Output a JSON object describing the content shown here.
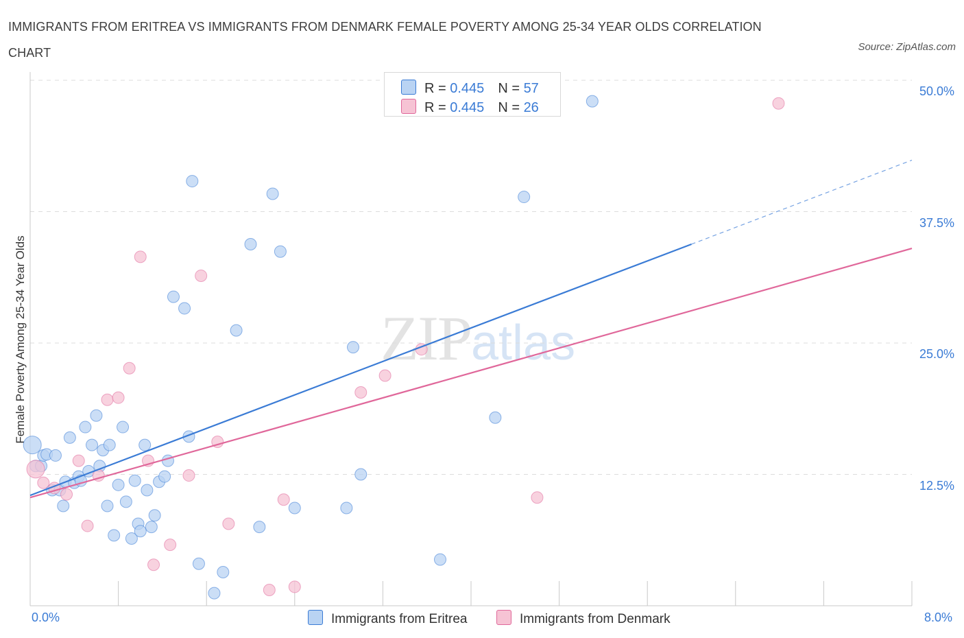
{
  "title": "IMMIGRANTS FROM ERITREA VS IMMIGRANTS FROM DENMARK FEMALE POVERTY AMONG 25-34 YEAR OLDS CORRELATION CHART",
  "source": "Source: ZipAtlas.com",
  "watermark": {
    "zip": "ZIP",
    "atlas": "atlas"
  },
  "colors": {
    "eritrea": "#3a7bd5",
    "eritrea_fill": "#b9d3f3",
    "denmark": "#e0679a",
    "denmark_fill": "#f6c3d4",
    "tick_text": "#3a7bd5"
  },
  "legend": {
    "rows": [
      {
        "r_label": "R = ",
        "r_value": "0.445",
        "n_label": "N = ",
        "n_value": "57"
      },
      {
        "r_label": "R = ",
        "r_value": "0.445",
        "n_label": "N = ",
        "n_value": "26"
      }
    ]
  },
  "bottom_legend": {
    "eritrea": "Immigrants from Eritrea",
    "denmark": "Immigrants from Denmark"
  },
  "axes": {
    "ylabel": "Female Poverty Among 25-34 Year Olds",
    "x_min_label": "0.0%",
    "x_max_label": "8.0%",
    "y_ticks": [
      "50.0%",
      "37.5%",
      "25.0%",
      "12.5%"
    ]
  },
  "chart_data": {
    "type": "scatter",
    "title": "IMMIGRANTS FROM ERITREA VS IMMIGRANTS FROM DENMARK FEMALE POVERTY AMONG 25-34 YEAR OLDS CORRELATION CHART",
    "xlabel": "",
    "ylabel": "Female Poverty Among 25-34 Year Olds",
    "xlim": [
      0,
      8
    ],
    "ylim": [
      0,
      50
    ],
    "grid": true,
    "legend_position": "top-center",
    "series": [
      {
        "name": "Immigrants from Eritrea",
        "color": "#3a7bd5",
        "points": [
          [
            0.02,
            15.3
          ],
          [
            0.05,
            13.3
          ],
          [
            0.1,
            13.3
          ],
          [
            0.12,
            14.3
          ],
          [
            0.15,
            14.4
          ],
          [
            0.2,
            11.0
          ],
          [
            0.23,
            14.3
          ],
          [
            0.27,
            11.0
          ],
          [
            0.3,
            9.5
          ],
          [
            0.32,
            11.8
          ],
          [
            0.36,
            16.0
          ],
          [
            0.4,
            11.7
          ],
          [
            0.44,
            12.3
          ],
          [
            0.46,
            11.9
          ],
          [
            0.5,
            17.0
          ],
          [
            0.53,
            12.8
          ],
          [
            0.56,
            15.3
          ],
          [
            0.6,
            18.1
          ],
          [
            0.63,
            13.3
          ],
          [
            0.66,
            14.8
          ],
          [
            0.7,
            9.5
          ],
          [
            0.72,
            15.3
          ],
          [
            0.76,
            6.7
          ],
          [
            0.8,
            11.5
          ],
          [
            0.84,
            17.0
          ],
          [
            0.87,
            9.9
          ],
          [
            0.92,
            6.4
          ],
          [
            0.95,
            11.9
          ],
          [
            0.98,
            7.8
          ],
          [
            1.0,
            7.1
          ],
          [
            1.04,
            15.3
          ],
          [
            1.06,
            11.0
          ],
          [
            1.1,
            7.5
          ],
          [
            1.13,
            8.6
          ],
          [
            1.17,
            11.8
          ],
          [
            1.22,
            12.3
          ],
          [
            1.25,
            13.8
          ],
          [
            1.3,
            29.4
          ],
          [
            1.4,
            28.3
          ],
          [
            1.44,
            16.1
          ],
          [
            1.47,
            40.4
          ],
          [
            1.53,
            4.0
          ],
          [
            1.67,
            1.2
          ],
          [
            1.75,
            3.2
          ],
          [
            1.87,
            26.2
          ],
          [
            2.0,
            34.4
          ],
          [
            2.08,
            7.5
          ],
          [
            2.2,
            39.2
          ],
          [
            2.27,
            33.7
          ],
          [
            2.4,
            9.3
          ],
          [
            2.87,
            9.3
          ],
          [
            2.93,
            24.6
          ],
          [
            3.0,
            12.5
          ],
          [
            3.72,
            4.4
          ],
          [
            4.22,
            17.9
          ],
          [
            4.48,
            38.9
          ],
          [
            5.1,
            48.0
          ]
        ]
      },
      {
        "name": "Immigrants from Denmark",
        "color": "#e0679a",
        "points": [
          [
            0.05,
            13.0
          ],
          [
            0.12,
            11.7
          ],
          [
            0.22,
            11.2
          ],
          [
            0.33,
            10.6
          ],
          [
            0.44,
            13.8
          ],
          [
            0.52,
            7.6
          ],
          [
            0.62,
            12.4
          ],
          [
            0.7,
            19.6
          ],
          [
            0.8,
            19.8
          ],
          [
            0.9,
            22.6
          ],
          [
            1.0,
            33.2
          ],
          [
            1.07,
            13.8
          ],
          [
            1.12,
            3.9
          ],
          [
            1.27,
            5.8
          ],
          [
            1.44,
            12.4
          ],
          [
            1.55,
            31.4
          ],
          [
            1.7,
            15.6
          ],
          [
            1.8,
            7.8
          ],
          [
            2.17,
            1.5
          ],
          [
            2.3,
            10.1
          ],
          [
            2.4,
            1.8
          ],
          [
            3.0,
            20.3
          ],
          [
            3.22,
            21.9
          ],
          [
            3.55,
            24.4
          ],
          [
            4.6,
            10.3
          ],
          [
            6.79,
            47.8
          ]
        ]
      }
    ],
    "trendlines": [
      {
        "series": "Immigrants from Eritrea",
        "x": [
          0,
          6.0
        ],
        "y": [
          10.5,
          34.4
        ],
        "dashed_extension": {
          "x": [
            6.0,
            8.0
          ],
          "y": [
            34.4,
            42.4
          ]
        }
      },
      {
        "series": "Immigrants from Denmark",
        "x": [
          0,
          8.0
        ],
        "y": [
          10.3,
          34.0
        ]
      }
    ]
  }
}
